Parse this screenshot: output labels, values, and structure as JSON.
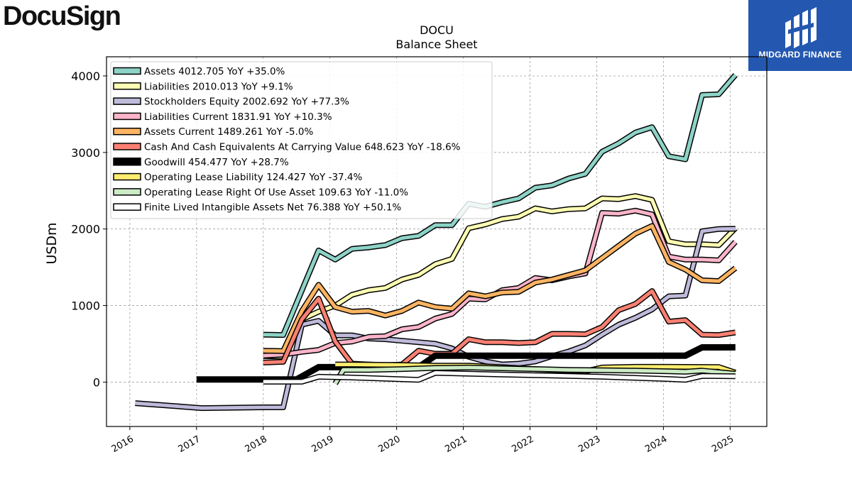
{
  "logos": {
    "left": "DocuSign",
    "right": "MIDGARD FINANCE"
  },
  "chart_data": {
    "type": "line",
    "title": "DOCU",
    "subtitle": "Balance  Sheet",
    "xlabel": "",
    "ylabel": "USDm",
    "xlim": [
      2015.65,
      2025.55
    ],
    "ylim": [
      -580,
      4250
    ],
    "yticks": [
      0,
      1000,
      2000,
      3000,
      4000
    ],
    "xticks": [
      "2016",
      "2017",
      "2018",
      "2019",
      "2020",
      "2021",
      "2022",
      "2023",
      "2024",
      "2025"
    ],
    "grid": true,
    "legend_position": "top-left",
    "series": [
      {
        "name": "Assets  4012.705 YoY +35.0%",
        "color": "#8dd3c7",
        "lw": 5,
        "points": [
          [
            2018.0,
            620
          ],
          [
            2018.3,
            615
          ],
          [
            2018.83,
            1720
          ],
          [
            2019.08,
            1600
          ],
          [
            2019.33,
            1740
          ],
          [
            2019.58,
            1760
          ],
          [
            2019.83,
            1790
          ],
          [
            2020.08,
            1880
          ],
          [
            2020.33,
            1910
          ],
          [
            2020.58,
            2050
          ],
          [
            2020.83,
            2050
          ],
          [
            2021.08,
            2330
          ],
          [
            2021.33,
            2290
          ],
          [
            2021.58,
            2350
          ],
          [
            2021.83,
            2400
          ],
          [
            2022.08,
            2540
          ],
          [
            2022.33,
            2570
          ],
          [
            2022.58,
            2660
          ],
          [
            2022.83,
            2720
          ],
          [
            2023.08,
            3010
          ],
          [
            2023.33,
            3120
          ],
          [
            2023.58,
            3260
          ],
          [
            2023.83,
            3330
          ],
          [
            2024.08,
            2950
          ],
          [
            2024.33,
            2910
          ],
          [
            2024.58,
            3750
          ],
          [
            2024.83,
            3760
          ],
          [
            2025.08,
            4012.705
          ]
        ]
      },
      {
        "name": "Liabilities  2010.013 YoY +9.1%",
        "color": "#ffffb3",
        "lw": 5,
        "points": [
          [
            2018.0,
            340
          ],
          [
            2018.3,
            335
          ],
          [
            2018.58,
            820
          ],
          [
            2018.83,
            920
          ],
          [
            2019.08,
            1000
          ],
          [
            2019.33,
            1140
          ],
          [
            2019.58,
            1200
          ],
          [
            2019.83,
            1230
          ],
          [
            2020.08,
            1340
          ],
          [
            2020.33,
            1400
          ],
          [
            2020.58,
            1540
          ],
          [
            2020.83,
            1610
          ],
          [
            2021.08,
            2010
          ],
          [
            2021.33,
            2060
          ],
          [
            2021.58,
            2130
          ],
          [
            2021.83,
            2160
          ],
          [
            2022.08,
            2270
          ],
          [
            2022.33,
            2230
          ],
          [
            2022.58,
            2260
          ],
          [
            2022.83,
            2270
          ],
          [
            2023.08,
            2400
          ],
          [
            2023.33,
            2390
          ],
          [
            2023.58,
            2430
          ],
          [
            2023.83,
            2380
          ],
          [
            2024.08,
            1840
          ],
          [
            2024.33,
            1800
          ],
          [
            2024.58,
            1800
          ],
          [
            2024.83,
            1790
          ],
          [
            2025.08,
            2010.013
          ]
        ]
      },
      {
        "name": "Stockholders Equity  2002.692 YoY +77.3%",
        "color": "#bebada",
        "lw": 5,
        "points": [
          [
            2016.08,
            -275
          ],
          [
            2017.08,
            -340
          ],
          [
            2018.0,
            -330
          ],
          [
            2018.3,
            -330
          ],
          [
            2018.58,
            750
          ],
          [
            2018.83,
            800
          ],
          [
            2019.08,
            610
          ],
          [
            2019.33,
            610
          ],
          [
            2019.58,
            570
          ],
          [
            2019.83,
            560
          ],
          [
            2020.08,
            540
          ],
          [
            2020.33,
            520
          ],
          [
            2020.58,
            500
          ],
          [
            2020.83,
            440
          ],
          [
            2021.08,
            330
          ],
          [
            2021.33,
            270
          ],
          [
            2021.58,
            230
          ],
          [
            2021.83,
            240
          ],
          [
            2022.08,
            270
          ],
          [
            2022.33,
            340
          ],
          [
            2022.58,
            400
          ],
          [
            2022.83,
            480
          ],
          [
            2023.08,
            620
          ],
          [
            2023.33,
            750
          ],
          [
            2023.58,
            840
          ],
          [
            2023.83,
            950
          ],
          [
            2024.08,
            1120
          ],
          [
            2024.33,
            1130
          ],
          [
            2024.58,
            1970
          ],
          [
            2024.83,
            2000
          ],
          [
            2025.08,
            2002.692
          ]
        ]
      },
      {
        "name": "Liabilities Current  1831.91 YoY +10.3%",
        "color": "#fbb4c9",
        "lw": 5,
        "points": [
          [
            2018.0,
            345
          ],
          [
            2018.3,
            360
          ],
          [
            2018.58,
            395
          ],
          [
            2018.83,
            420
          ],
          [
            2019.08,
            510
          ],
          [
            2019.33,
            530
          ],
          [
            2019.58,
            590
          ],
          [
            2019.83,
            600
          ],
          [
            2020.08,
            690
          ],
          [
            2020.33,
            720
          ],
          [
            2020.58,
            830
          ],
          [
            2020.83,
            890
          ],
          [
            2021.08,
            1090
          ],
          [
            2021.33,
            1080
          ],
          [
            2021.58,
            1200
          ],
          [
            2021.83,
            1230
          ],
          [
            2022.08,
            1360
          ],
          [
            2022.33,
            1330
          ],
          [
            2022.58,
            1380
          ],
          [
            2022.83,
            1420
          ],
          [
            2023.08,
            2210
          ],
          [
            2023.33,
            2200
          ],
          [
            2023.58,
            2240
          ],
          [
            2023.83,
            2190
          ],
          [
            2024.08,
            1640
          ],
          [
            2024.33,
            1600
          ],
          [
            2024.58,
            1600
          ],
          [
            2024.83,
            1590
          ],
          [
            2025.08,
            1831.91
          ]
        ]
      },
      {
        "name": "Assets Current  1489.261 YoY -5.0%",
        "color": "#fdb462",
        "lw": 5,
        "points": [
          [
            2018.0,
            410
          ],
          [
            2018.3,
            405
          ],
          [
            2018.58,
            930
          ],
          [
            2018.83,
            1270
          ],
          [
            2019.08,
            980
          ],
          [
            2019.33,
            920
          ],
          [
            2019.58,
            930
          ],
          [
            2019.83,
            870
          ],
          [
            2020.08,
            930
          ],
          [
            2020.33,
            1040
          ],
          [
            2020.58,
            980
          ],
          [
            2020.83,
            960
          ],
          [
            2021.08,
            1160
          ],
          [
            2021.33,
            1120
          ],
          [
            2021.58,
            1170
          ],
          [
            2021.83,
            1180
          ],
          [
            2022.08,
            1300
          ],
          [
            2022.33,
            1340
          ],
          [
            2022.58,
            1400
          ],
          [
            2022.83,
            1460
          ],
          [
            2023.08,
            1620
          ],
          [
            2023.33,
            1780
          ],
          [
            2023.58,
            1940
          ],
          [
            2023.83,
            2040
          ],
          [
            2024.08,
            1570
          ],
          [
            2024.33,
            1470
          ],
          [
            2024.58,
            1330
          ],
          [
            2024.83,
            1320
          ],
          [
            2025.08,
            1489.261
          ]
        ]
      },
      {
        "name": "Cash And Cash Equivalents At Carrying Value  648.623 YoY -18.6%",
        "color": "#fb8072",
        "lw": 5,
        "points": [
          [
            2018.0,
            255
          ],
          [
            2018.3,
            265
          ],
          [
            2018.58,
            820
          ],
          [
            2018.83,
            1090
          ],
          [
            2019.08,
            530
          ],
          [
            2019.33,
            240
          ],
          [
            2019.58,
            230
          ],
          [
            2019.83,
            220
          ],
          [
            2020.08,
            230
          ],
          [
            2020.33,
            410
          ],
          [
            2020.58,
            370
          ],
          [
            2020.83,
            370
          ],
          [
            2021.08,
            560
          ],
          [
            2021.33,
            520
          ],
          [
            2021.58,
            520
          ],
          [
            2021.83,
            510
          ],
          [
            2022.08,
            520
          ],
          [
            2022.33,
            630
          ],
          [
            2022.58,
            630
          ],
          [
            2022.83,
            625
          ],
          [
            2023.08,
            720
          ],
          [
            2023.33,
            940
          ],
          [
            2023.58,
            1020
          ],
          [
            2023.83,
            1190
          ],
          [
            2024.08,
            790
          ],
          [
            2024.33,
            810
          ],
          [
            2024.58,
            620
          ],
          [
            2024.83,
            615
          ],
          [
            2025.08,
            648.623
          ]
        ]
      },
      {
        "name": "Goodwill  454.477 YoY +28.7%",
        "color": "#000000",
        "lw": 9,
        "points": [
          [
            2017.0,
            35
          ],
          [
            2018.5,
            35
          ],
          [
            2018.83,
            195
          ],
          [
            2020.33,
            195
          ],
          [
            2020.58,
            345
          ],
          [
            2024.33,
            345
          ],
          [
            2024.58,
            454
          ],
          [
            2025.08,
            454.477
          ]
        ]
      },
      {
        "name": "Operating Lease Liability  124.427 YoY -37.4%",
        "color": "#ffed6f",
        "lw": 5,
        "points": [
          [
            2019.08,
            230
          ],
          [
            2019.33,
            230
          ],
          [
            2020.0,
            225
          ],
          [
            2020.58,
            215
          ],
          [
            2021.08,
            215
          ],
          [
            2021.58,
            195
          ],
          [
            2022.08,
            170
          ],
          [
            2022.58,
            150
          ],
          [
            2022.83,
            140
          ],
          [
            2023.08,
            190
          ],
          [
            2023.58,
            200
          ],
          [
            2024.08,
            200
          ],
          [
            2024.58,
            198
          ],
          [
            2024.83,
            196
          ],
          [
            2025.08,
            124.427
          ]
        ]
      },
      {
        "name": "Operating Lease Right Of Use Asset  109.63 YoY -11.0%",
        "color": "#ccebc5",
        "lw": 5,
        "points": [
          [
            2019.08,
            -20
          ],
          [
            2019.2,
            160
          ],
          [
            2019.58,
            160
          ],
          [
            2020.08,
            170
          ],
          [
            2020.58,
            185
          ],
          [
            2021.08,
            190
          ],
          [
            2021.58,
            180
          ],
          [
            2022.08,
            170
          ],
          [
            2022.58,
            160
          ],
          [
            2023.08,
            155
          ],
          [
            2023.58,
            150
          ],
          [
            2024.08,
            140
          ],
          [
            2024.33,
            135
          ],
          [
            2024.58,
            150
          ],
          [
            2025.08,
            109.63
          ]
        ]
      },
      {
        "name": "Finite Lived Intangible Assets Net  76.388 YoY +50.1%",
        "color": "#ffffff",
        "lw": 5,
        "points": [
          [
            2018.0,
            5
          ],
          [
            2018.58,
            5
          ],
          [
            2018.83,
            70
          ],
          [
            2019.33,
            60
          ],
          [
            2019.83,
            45
          ],
          [
            2020.33,
            30
          ],
          [
            2020.58,
            120
          ],
          [
            2021.08,
            110
          ],
          [
            2021.58,
            100
          ],
          [
            2022.08,
            90
          ],
          [
            2022.58,
            80
          ],
          [
            2023.08,
            70
          ],
          [
            2023.58,
            55
          ],
          [
            2024.08,
            40
          ],
          [
            2024.33,
            30
          ],
          [
            2024.58,
            80
          ],
          [
            2025.08,
            76.388
          ]
        ]
      }
    ]
  }
}
